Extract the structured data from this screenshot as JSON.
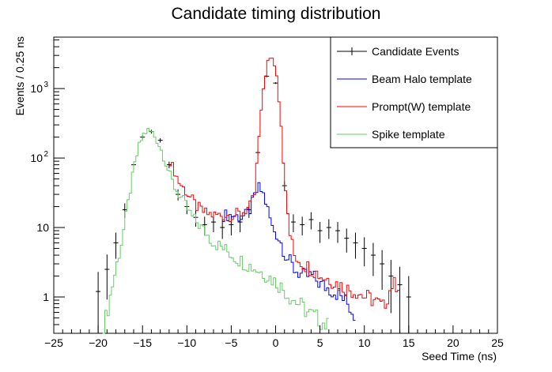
{
  "chart_data": {
    "type": "line",
    "title": "Candidate timing distribution",
    "xlabel": "Seed Time (ns)",
    "ylabel": "Events / 0.25 ns",
    "xlim": [
      -25,
      25
    ],
    "ylim": [
      0.3,
      5500
    ],
    "yscale": "log",
    "x_ticks": [
      "−25",
      "−20",
      "−15",
      "−10",
      "−5",
      "0",
      "5",
      "10",
      "15",
      "20",
      "25"
    ],
    "y_ticks": [
      "1",
      "10",
      "10",
      "10"
    ],
    "y_tick_exponents": [
      "",
      "",
      "2",
      "3"
    ],
    "grid": false,
    "legend_placement": "top-right",
    "series": [
      {
        "name": "Candidate Events",
        "color": "#000000",
        "style": "errorbar",
        "x": [
          -20,
          -19,
          -18,
          -17,
          -16,
          -15,
          -14,
          -13,
          -12,
          -11,
          -10,
          -9,
          -8,
          -7,
          -6,
          -5,
          -4,
          -3,
          -2,
          -1,
          0,
          1,
          2,
          3,
          4,
          5,
          6,
          7,
          8,
          9,
          10,
          11,
          12,
          13,
          14,
          15
        ],
        "values": [
          1.2,
          2.5,
          6,
          18,
          80,
          200,
          240,
          180,
          80,
          30,
          20,
          14,
          11,
          12,
          10,
          11,
          12,
          18,
          120,
          1500,
          1200,
          40,
          12,
          11,
          13,
          9,
          10,
          9,
          7,
          6,
          5,
          4,
          3,
          2,
          1.5,
          1
        ]
      },
      {
        "name": "Beam Halo template",
        "color": "#0000ff",
        "style": "step",
        "x": [
          -6,
          -5,
          -4,
          -3.5,
          -3,
          -2.5,
          -2,
          -1.5,
          -1,
          -0.5,
          0,
          0.5,
          1,
          2,
          3,
          4,
          5,
          6,
          7,
          8,
          9
        ],
        "values": [
          15,
          15,
          14,
          15,
          18,
          28,
          38,
          30,
          18,
          10,
          8,
          6,
          4,
          2.5,
          2,
          2,
          1.5,
          1.3,
          1.1,
          0.8,
          0.5
        ]
      },
      {
        "name": "Prompt(W) template",
        "color": "#ff0000",
        "style": "step",
        "x": [
          -12,
          -11,
          -10,
          -9,
          -8,
          -7,
          -6,
          -5,
          -4,
          -3,
          -2.5,
          -2,
          -1.5,
          -1,
          -0.5,
          0,
          0.5,
          1,
          1.5,
          2,
          3,
          4,
          5,
          6,
          7,
          8,
          9,
          10,
          11,
          12,
          13,
          14
        ],
        "values": [
          90,
          45,
          30,
          20,
          16,
          15,
          15,
          15,
          16,
          20,
          30,
          200,
          1000,
          2500,
          2800,
          1600,
          300,
          30,
          8,
          4,
          3,
          2.5,
          2,
          1.8,
          1.5,
          1.3,
          1.2,
          1,
          0.9,
          0.7,
          1.5,
          1.5
        ]
      },
      {
        "name": "Spike template",
        "color": "#66cc66",
        "style": "step",
        "x": [
          -19.5,
          -19,
          -18.5,
          -18,
          -17.5,
          -17,
          -16.5,
          -16,
          -15.5,
          -15,
          -14.5,
          -14,
          -13.5,
          -13,
          -12.5,
          -12,
          -11.5,
          -11,
          -10.5,
          -10,
          -9.5,
          -9,
          -8.5,
          -8,
          -7.5,
          -7,
          -6.5,
          -6,
          -5.5,
          -5,
          -4.5,
          -4,
          -3.5,
          -3,
          -2.5,
          -2,
          -1.5,
          -1,
          -0.5,
          0,
          0.5,
          1,
          1.5,
          2,
          2.5,
          3,
          3.5,
          4,
          4.5,
          5,
          5.5,
          6
        ],
        "values": [
          0.35,
          0.7,
          1.5,
          3,
          6,
          14,
          35,
          80,
          150,
          220,
          250,
          230,
          180,
          130,
          85,
          55,
          38,
          30,
          24,
          18,
          14,
          12,
          10,
          8.5,
          7,
          6,
          5.5,
          5,
          4.5,
          4,
          3.6,
          3.3,
          3.0,
          2.8,
          2.6,
          2.4,
          2.2,
          2.0,
          1.8,
          1.6,
          1.4,
          1.2,
          1.0,
          0.9,
          0.8,
          0.7,
          0.6,
          0.55,
          0.5,
          0.45,
          0.4,
          0.35
        ]
      }
    ]
  }
}
